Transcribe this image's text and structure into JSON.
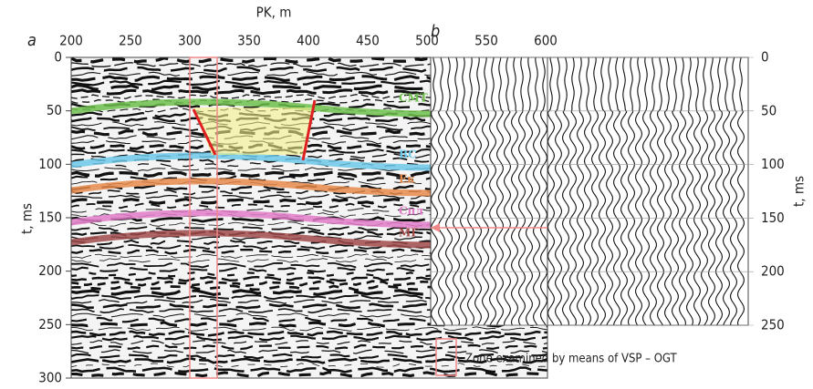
{
  "panel_a": {
    "label": "a",
    "x_axis_title": "PK, m",
    "x_ticks": [
      "200",
      "250",
      "300",
      "350",
      "400",
      "450",
      "500",
      "550",
      "600"
    ],
    "y_ticks": [
      "0",
      "50",
      "100",
      "150",
      "200",
      "250",
      "300"
    ],
    "y_axis_title": "t, ms",
    "horizons": [
      "СМТ",
      "ВС",
      "Ек",
      "Спл",
      "МГ"
    ]
  },
  "panel_b": {
    "label": "b",
    "y_ticks": [
      "0",
      "50",
      "100",
      "150",
      "200",
      "250"
    ],
    "y_axis_title": "t, ms"
  },
  "legend": {
    "text": "Zone examined by means of VSP – OGT"
  }
}
